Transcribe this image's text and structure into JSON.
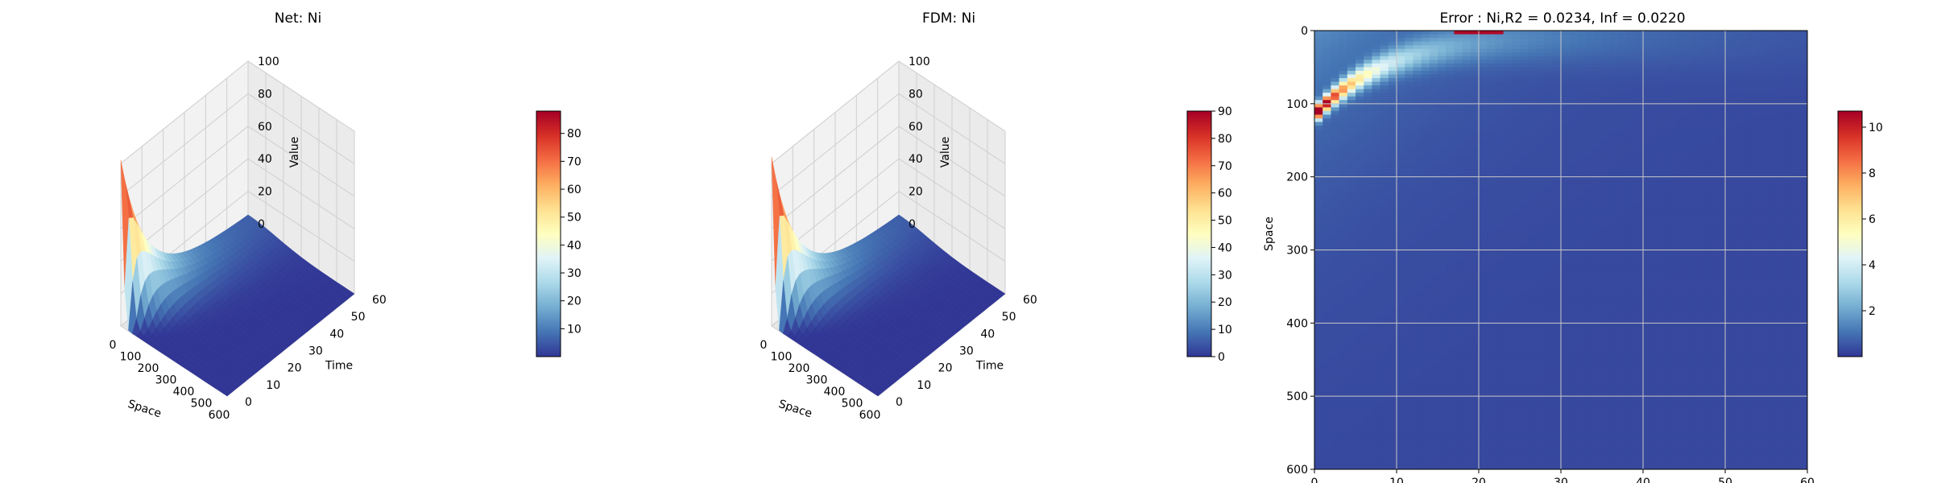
{
  "figure": {
    "panels": 3
  },
  "colormap": "RdYlBu_r",
  "colors": {
    "cmap_stops": [
      "#313695",
      "#4575b4",
      "#74add1",
      "#abd9e9",
      "#e0f3f8",
      "#ffffbf",
      "#fee090",
      "#fdae61",
      "#f46d43",
      "#d73027",
      "#a50026"
    ],
    "pane": "#f2f2f2",
    "grid": "#cfcfcf"
  },
  "chart_data": [
    {
      "type": "surface",
      "title": "Net: Ni",
      "xlabel": "Space",
      "ylabel": "Time",
      "zlabel": "Value",
      "x_ticks": [
        "0",
        "100",
        "200",
        "300",
        "400",
        "500",
        "600"
      ],
      "y_ticks": [
        "0",
        "10",
        "20",
        "30",
        "40",
        "50",
        "60"
      ],
      "z_ticks": [
        "0",
        "20",
        "40",
        "60",
        "80",
        "100"
      ],
      "xlim": [
        0,
        600
      ],
      "ylim": [
        0,
        60
      ],
      "zlim": [
        0,
        100
      ],
      "colorbar": {
        "ticks": [
          "10",
          "20",
          "30",
          "40",
          "50",
          "60",
          "70",
          "80"
        ],
        "range": [
          0,
          88
        ]
      },
      "surface_samples": [
        {
          "time": 0,
          "space": 0,
          "value": 88
        },
        {
          "time": 10,
          "space": 0,
          "value": 42
        },
        {
          "time": 20,
          "space": 0,
          "value": 33
        },
        {
          "time": 30,
          "space": 0,
          "value": 22
        },
        {
          "time": 60,
          "space": 0,
          "value": 10
        },
        {
          "time": 0,
          "space": 100,
          "value": 1
        }
      ]
    },
    {
      "type": "surface",
      "title": "FDM: Ni",
      "xlabel": "Space",
      "ylabel": "Time",
      "zlabel": "Value",
      "x_ticks": [
        "0",
        "100",
        "200",
        "300",
        "400",
        "500",
        "600"
      ],
      "y_ticks": [
        "0",
        "10",
        "20",
        "30",
        "40",
        "50",
        "60"
      ],
      "z_ticks": [
        "0",
        "20",
        "40",
        "60",
        "80",
        "100"
      ],
      "xlim": [
        0,
        600
      ],
      "ylim": [
        0,
        60
      ],
      "zlim": [
        0,
        100
      ],
      "colorbar": {
        "ticks": [
          "0",
          "10",
          "20",
          "30",
          "40",
          "50",
          "60",
          "70",
          "80",
          "90"
        ],
        "range": [
          0,
          90
        ]
      },
      "surface_samples": [
        {
          "time": 0,
          "space": 0,
          "value": 90
        },
        {
          "time": 10,
          "space": 0,
          "value": 42
        },
        {
          "time": 20,
          "space": 0,
          "value": 33
        },
        {
          "time": 30,
          "space": 0,
          "value": 22
        },
        {
          "time": 60,
          "space": 0,
          "value": 10
        },
        {
          "time": 0,
          "space": 100,
          "value": 1
        }
      ]
    },
    {
      "type": "heatmap",
      "title": "Error : Ni,R2 = 0.0234, Inf = 0.0220",
      "xlabel": "Time",
      "ylabel": "Space",
      "x_ticks": [
        "0",
        "10",
        "20",
        "30",
        "40",
        "50",
        "60"
      ],
      "y_ticks": [
        "0",
        "100",
        "200",
        "300",
        "400",
        "500",
        "600"
      ],
      "xlim": [
        0,
        60
      ],
      "ylim": [
        600,
        0
      ],
      "grid": true,
      "colorbar": {
        "ticks": [
          "2",
          "4",
          "6",
          "8",
          "10"
        ],
        "range": [
          0,
          10.7
        ]
      },
      "error_ridge": [
        {
          "time": 0.5,
          "space": 110,
          "value": 10.5
        },
        {
          "time": 2,
          "space": 75,
          "value": 9
        },
        {
          "time": 5,
          "space": 50,
          "value": 7
        },
        {
          "time": 10,
          "space": 30,
          "value": 4
        },
        {
          "time": 15,
          "space": 15,
          "value": 3
        },
        {
          "time": 20,
          "space": 2,
          "value": 10
        },
        {
          "time": 30,
          "space": 5,
          "value": 1.5
        },
        {
          "time": 45,
          "space": 15,
          "value": 0.6
        }
      ],
      "background_value": 0.3
    }
  ]
}
